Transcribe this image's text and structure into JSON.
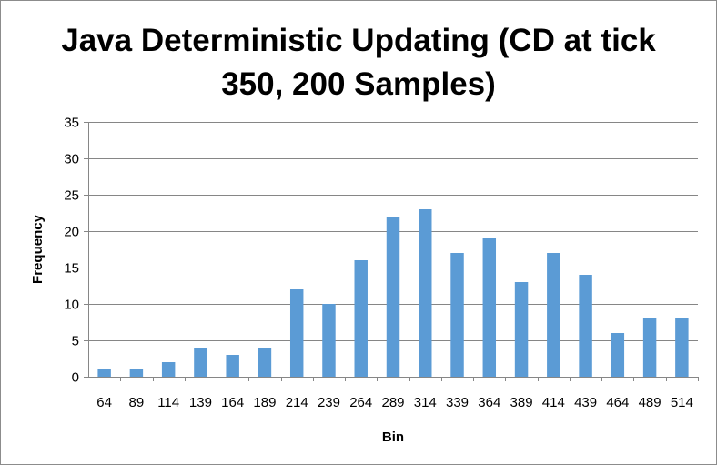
{
  "chart_data": {
    "type": "bar",
    "title": "Java Deterministic Updating (CD at tick 350, 200 Samples)",
    "title_lines": [
      "Java Deterministic Updating (CD at tick",
      "350, 200 Samples)"
    ],
    "xlabel": "Bin",
    "ylabel": "Frequency",
    "categories": [
      "64",
      "89",
      "114",
      "139",
      "164",
      "189",
      "214",
      "239",
      "264",
      "289",
      "314",
      "339",
      "364",
      "389",
      "414",
      "439",
      "464",
      "489",
      "514"
    ],
    "values": [
      1,
      1,
      2,
      4,
      3,
      4,
      12,
      10,
      16,
      22,
      23,
      17,
      19,
      13,
      17,
      14,
      6,
      8,
      8
    ],
    "ylim": [
      0,
      35
    ],
    "yticks": [
      0,
      5,
      10,
      15,
      20,
      25,
      30,
      35
    ],
    "grid": true,
    "legend": "none",
    "colors": {
      "bar": "#5b9bd5",
      "grid": "#868686",
      "axis": "#868686"
    }
  }
}
